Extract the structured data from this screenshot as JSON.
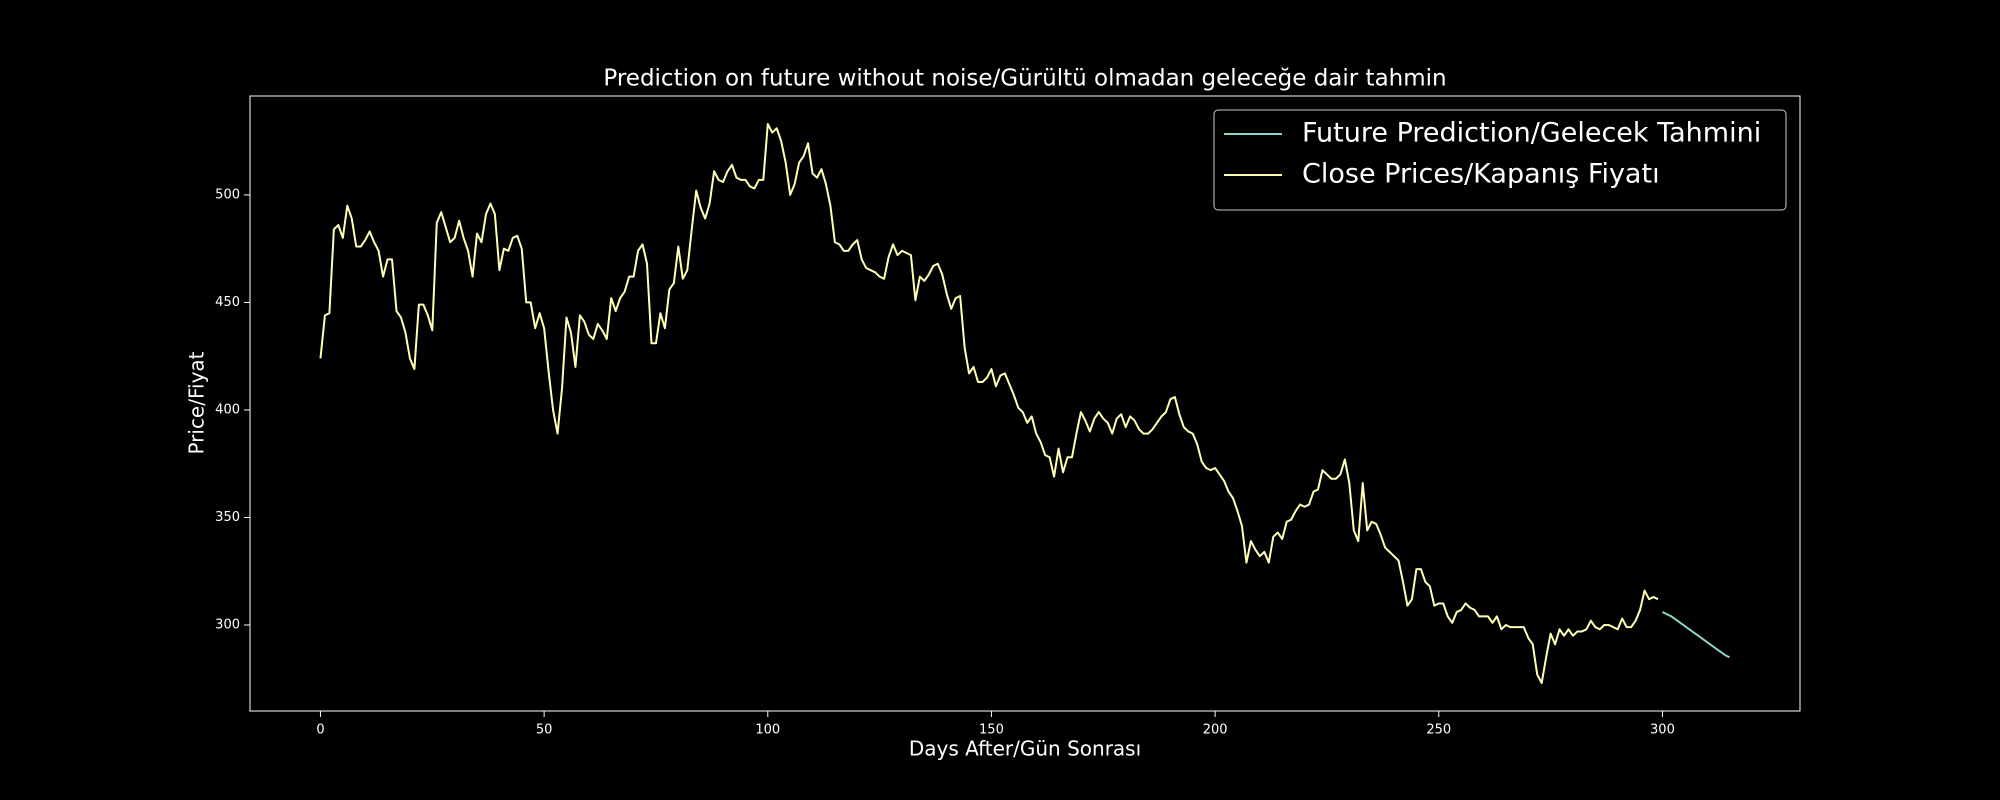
{
  "chart_data": {
    "type": "line",
    "title": "Prediction on future without noise/Gürültü olmadan geleceğe dair tahmin",
    "x_label": "Days After/Gün Sonrası",
    "y_label": "Price/Fiyat",
    "xlim": [
      -15.75,
      330.75
    ],
    "xticks": [
      0,
      50,
      100,
      150,
      200,
      250,
      300
    ],
    "ylim": [
      260,
      546
    ],
    "yticks": [
      300,
      350,
      400,
      450,
      500
    ],
    "legend": "upper right",
    "series": [
      {
        "name": "Future Prediction/Gelecek Tahmini",
        "color": "#8dd3c7",
        "x": [
          300,
          301,
          302,
          303,
          304,
          305,
          306,
          307,
          308,
          309,
          310,
          311,
          312,
          313,
          314,
          315
        ],
        "values": [
          306,
          305,
          304,
          302.5,
          301,
          299.5,
          298,
          296.5,
          295,
          293.5,
          292,
          290.5,
          289,
          287.5,
          286,
          285
        ]
      },
      {
        "name": "Close Prices/Kapanış Fiyatı",
        "color": "#ffffb3",
        "x": [
          0,
          1,
          2,
          3,
          4,
          5,
          6,
          7,
          8,
          9,
          10,
          11,
          12,
          13,
          14,
          15,
          16,
          17,
          18,
          19,
          20,
          21,
          22,
          23,
          24,
          25,
          26,
          27,
          28,
          29,
          30,
          31,
          32,
          33,
          34,
          35,
          36,
          37,
          38,
          39,
          40,
          41,
          42,
          43,
          44,
          45,
          46,
          47,
          48,
          49,
          50,
          51,
          52,
          53,
          54,
          55,
          56,
          57,
          58,
          59,
          60,
          61,
          62,
          63,
          64,
          65,
          66,
          67,
          68,
          69,
          70,
          71,
          72,
          73,
          74,
          75,
          76,
          77,
          78,
          79,
          80,
          81,
          82,
          83,
          84,
          85,
          86,
          87,
          88,
          89,
          90,
          91,
          92,
          93,
          94,
          95,
          96,
          97,
          98,
          99,
          100,
          101,
          102,
          103,
          104,
          105,
          106,
          107,
          108,
          109,
          110,
          111,
          112,
          113,
          114,
          115,
          116,
          117,
          118,
          119,
          120,
          121,
          122,
          123,
          124,
          125,
          126,
          127,
          128,
          129,
          130,
          131,
          132,
          133,
          134,
          135,
          136,
          137,
          138,
          139,
          140,
          141,
          142,
          143,
          144,
          145,
          146,
          147,
          148,
          149,
          150,
          151,
          152,
          153,
          154,
          155,
          156,
          157,
          158,
          159,
          160,
          161,
          162,
          163,
          164,
          165,
          166,
          167,
          168,
          169,
          170,
          171,
          172,
          173,
          174,
          175,
          176,
          177,
          178,
          179,
          180,
          181,
          182,
          183,
          184,
          185,
          186,
          187,
          188,
          189,
          190,
          191,
          192,
          193,
          194,
          195,
          196,
          197,
          198,
          199,
          200,
          201,
          202,
          203,
          204,
          205,
          206,
          207,
          208,
          209,
          210,
          211,
          212,
          213,
          214,
          215,
          216,
          217,
          218,
          219,
          220,
          221,
          222,
          223,
          224,
          225,
          226,
          227,
          228,
          229,
          230,
          231,
          232,
          233,
          234,
          235,
          236,
          237,
          238,
          239,
          240,
          241,
          242,
          243,
          244,
          245,
          246,
          247,
          248,
          249,
          250,
          251,
          252,
          253,
          254,
          255,
          256,
          257,
          258,
          259,
          260,
          261,
          262,
          263,
          264,
          265,
          266,
          267,
          268,
          269,
          270,
          271,
          272,
          273,
          274,
          275,
          276,
          277,
          278,
          279,
          280,
          281,
          282,
          283,
          284,
          285,
          286,
          287,
          288,
          289,
          290,
          291,
          292,
          293,
          294,
          295,
          296,
          297,
          298,
          299
        ],
        "values": [
          424,
          444,
          445,
          484,
          486,
          480,
          495,
          489,
          476,
          476,
          479,
          483,
          478,
          474,
          462,
          470,
          470,
          446,
          443,
          436,
          424,
          419,
          449,
          449,
          444,
          437,
          487,
          492,
          485,
          478,
          480,
          488,
          480,
          474,
          462,
          482,
          478,
          491,
          496,
          491,
          465,
          475,
          474,
          480,
          481,
          475,
          450,
          450,
          438,
          445,
          438,
          418,
          400,
          389,
          410,
          443,
          436,
          420,
          444,
          441,
          435,
          433,
          440,
          437,
          433,
          452,
          446,
          452,
          455,
          462,
          462,
          474,
          477,
          468,
          431,
          431,
          445,
          438,
          456,
          459,
          476,
          461,
          465,
          484,
          502,
          494,
          489,
          496,
          511,
          507,
          506,
          511,
          514,
          508,
          507,
          507,
          504,
          503,
          507,
          507,
          533,
          529,
          531,
          525,
          515,
          500,
          505,
          515,
          518,
          524,
          510,
          508,
          512,
          505,
          495,
          478,
          477,
          474,
          474,
          477,
          479,
          470,
          466,
          465,
          464,
          462,
          461,
          471,
          477,
          472,
          474,
          473,
          472,
          451,
          462,
          460,
          463,
          467,
          468,
          463,
          454,
          447,
          452,
          453,
          429,
          417,
          420,
          413,
          413,
          415,
          419,
          411,
          416,
          417,
          412,
          407,
          401,
          399,
          394,
          397,
          389,
          385,
          379,
          378,
          369,
          382,
          371,
          378,
          378,
          389,
          399,
          395,
          390,
          396,
          399,
          396,
          394,
          389,
          396,
          398,
          392,
          397,
          395,
          391,
          389,
          389,
          391,
          394,
          397,
          399,
          405,
          406,
          398,
          392,
          390,
          389,
          384,
          376,
          373,
          372,
          373,
          370,
          367,
          362,
          359,
          353,
          346,
          329,
          339,
          335,
          332,
          334,
          329,
          341,
          343,
          340,
          348,
          349,
          353,
          356,
          355,
          356,
          362,
          363,
          372,
          370,
          368,
          368,
          370,
          377,
          366,
          344,
          339,
          366,
          344,
          348,
          347,
          342,
          336,
          334,
          332,
          330,
          320,
          309,
          312,
          326,
          326,
          320,
          318,
          309,
          310,
          310,
          304,
          301,
          306,
          307,
          310,
          308,
          307,
          304,
          304,
          304,
          301,
          304,
          298,
          300,
          299,
          299,
          299,
          299,
          294,
          291,
          277,
          273,
          285,
          296,
          291,
          298,
          295,
          298,
          295,
          297,
          297,
          298,
          302,
          299,
          298,
          300,
          300,
          299,
          298,
          303,
          299,
          299,
          302,
          307,
          316,
          312,
          313,
          312
        ]
      }
    ]
  }
}
